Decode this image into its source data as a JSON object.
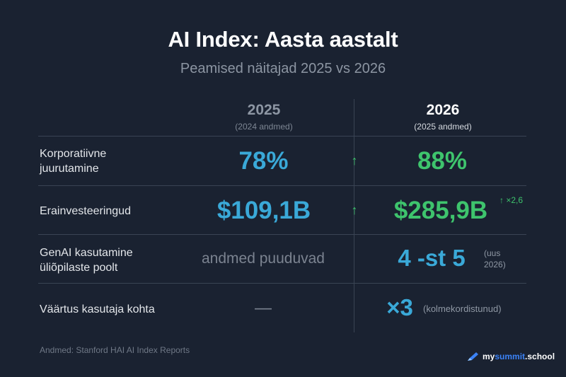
{
  "title": "AI Index: Aasta aastalt",
  "subtitle": "Peamised näitajad 2025 vs 2026",
  "columns": [
    {
      "year": "2025",
      "note": "(2024 andmed)"
    },
    {
      "year": "2026",
      "note": "(2025 andmed)"
    }
  ],
  "rows": [
    {
      "label_line1": "Korporatiivne",
      "label_line2": "juurutamine",
      "v2025": "78%",
      "arrow": "↑",
      "v2026": "88%"
    },
    {
      "label_line1": "Erainvesteeringud",
      "v2025": "$109,1B",
      "arrow": "↑",
      "v2026": "$285,9B",
      "note": "↑ ×2,6"
    },
    {
      "label_line1": "GenAI kasutamine",
      "label_line2": "üliõpilaste poolt",
      "v2025": "andmed puuduvad",
      "v2026": "4 -st 5",
      "note_line1": "(uus",
      "note_line2": "2026)"
    },
    {
      "label_line1": "Väärtus kasutaja kohta",
      "v2025": "—",
      "v2026": "×3",
      "note": "(kolmekordistunud)"
    }
  ],
  "source": "Andmed: Stanford HAI AI Index Reports",
  "brand": {
    "prefix": "my",
    "accent": "summit",
    "suffix": ".school",
    "icon": "pen-icon"
  },
  "colors": {
    "background": "#1a2231",
    "blue": "#3aa9d8",
    "green": "#3ec46d",
    "brand_accent": "#3b82f6"
  }
}
